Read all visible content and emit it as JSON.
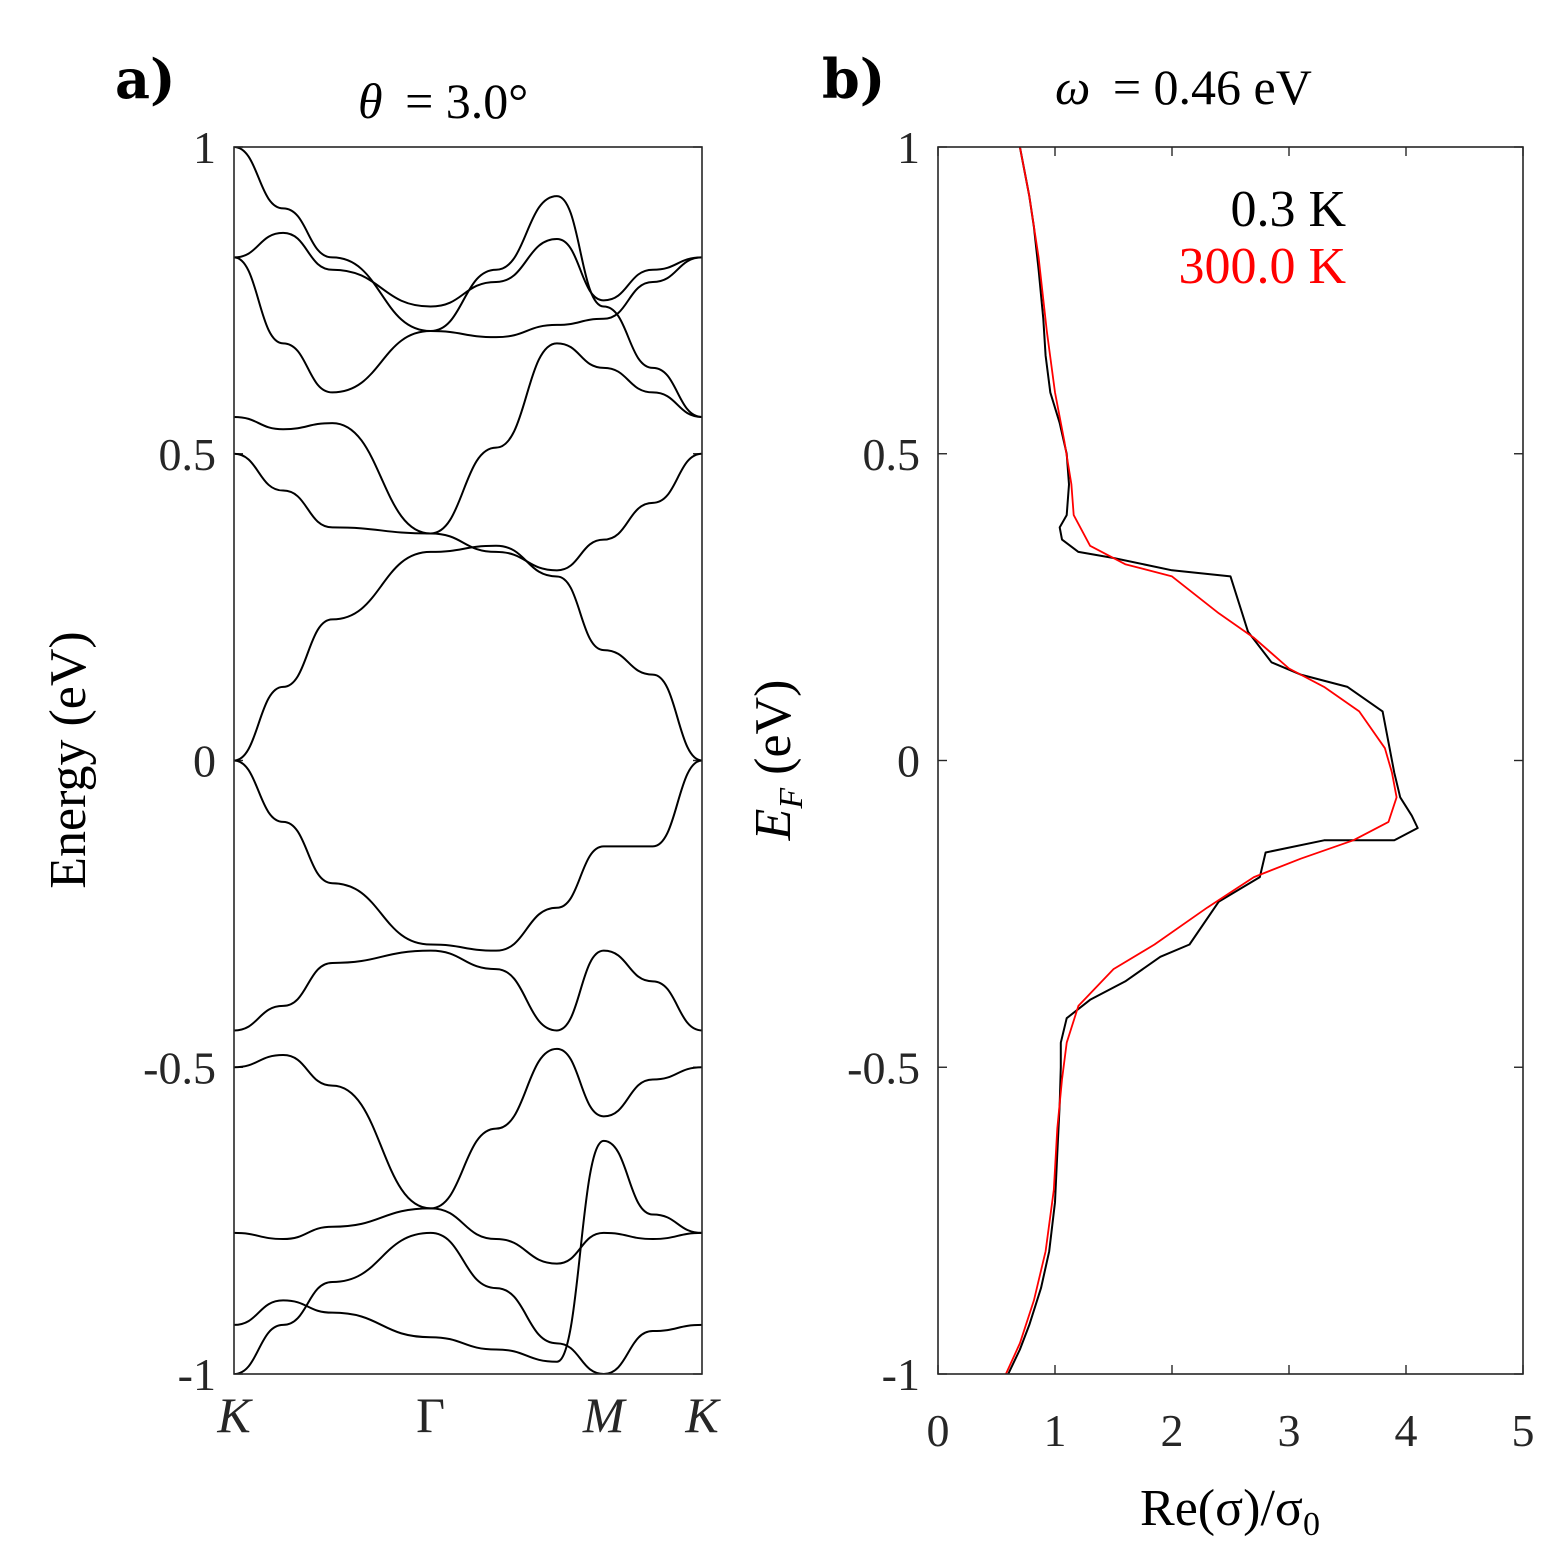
{
  "panel_a": {
    "label": "a)",
    "title_lhs": "θ",
    "title_rhs": "= 3.0°",
    "ylabel": "Energy (eV)"
  },
  "panel_b": {
    "label": "b)",
    "title_lhs": "ω",
    "title_rhs": "= 0.46 eV",
    "xlabel_main": "Re(σ)/σ",
    "xlabel_sub": "0",
    "ylabel_main": "E",
    "ylabel_sub": "F",
    "ylabel_rest": " (eV)"
  },
  "colors": {
    "series_0_3K": "#000000",
    "series_300K": "#ff0000",
    "axes": "#262626"
  },
  "chart_data": [
    {
      "type": "line",
      "panel": "a",
      "title": "θ = 3.0°",
      "ylabel": "Energy (eV)",
      "xlabel": "",
      "ylim": [
        -1,
        1
      ],
      "yticks": [
        -1,
        -0.5,
        0,
        0.5,
        1
      ],
      "ytick_labels": [
        "-1",
        "-0.5",
        "0",
        "0.5",
        "1"
      ],
      "x": [
        "K",
        "Γ",
        "M",
        "K"
      ],
      "x_positions": [
        0,
        0.42,
        0.79,
        1.0
      ],
      "bands": [
        [
          0.0,
          0.12,
          0.23,
          0.34,
          0.35,
          0.3,
          0.18,
          0.14,
          0.0
        ],
        [
          0.0,
          -0.1,
          -0.2,
          -0.3,
          -0.31,
          -0.24,
          -0.14,
          -0.14,
          0.0
        ],
        [
          0.5,
          0.44,
          0.38,
          0.37,
          0.34,
          0.31,
          0.36,
          0.42,
          0.5
        ],
        [
          -0.44,
          -0.4,
          -0.33,
          -0.31,
          -0.34,
          -0.44,
          -0.31,
          -0.36,
          -0.44
        ],
        [
          0.56,
          0.54,
          0.55,
          0.37,
          0.51,
          0.68,
          0.64,
          0.6,
          0.56
        ],
        [
          -0.5,
          -0.48,
          -0.53,
          -0.73,
          -0.6,
          -0.47,
          -0.58,
          -0.52,
          -0.5
        ],
        [
          0.82,
          0.86,
          0.8,
          0.74,
          0.78,
          0.85,
          0.75,
          0.8,
          0.82
        ],
        [
          -0.77,
          -0.78,
          -0.76,
          -0.73,
          -0.78,
          -0.82,
          -0.77,
          -0.78,
          -0.77
        ],
        [
          0.82,
          0.68,
          0.6,
          0.7,
          0.69,
          0.71,
          0.72,
          0.78,
          0.82
        ],
        [
          -0.92,
          -0.88,
          -0.9,
          -0.94,
          -0.96,
          -0.98,
          -0.62,
          -0.74,
          -0.77
        ],
        [
          1.0,
          0.9,
          0.82,
          0.7,
          0.8,
          0.92,
          0.74,
          0.64,
          0.56
        ],
        [
          -1.0,
          -0.92,
          -0.85,
          -0.77,
          -0.86,
          -0.95,
          -1.0,
          -0.93,
          -0.92
        ]
      ]
    },
    {
      "type": "line",
      "panel": "b",
      "title": "ω = 0.46 eV",
      "xlabel": "Re(σ)/σ0",
      "ylabel": "EF (eV)",
      "xlim": [
        0,
        5
      ],
      "ylim": [
        -1,
        1
      ],
      "xticks": [
        0,
        1,
        2,
        3,
        4,
        5
      ],
      "yticks": [
        -1,
        -0.5,
        0,
        0.5,
        1
      ],
      "ytick_labels": [
        "-1",
        "-0.5",
        "0",
        "0.5",
        "1"
      ],
      "legend_position": "top-right",
      "series": [
        {
          "name": "0.3 K",
          "color": "#000000",
          "points": [
            [
              0.7,
              1.0
            ],
            [
              0.74,
              0.96
            ],
            [
              0.78,
              0.92
            ],
            [
              0.82,
              0.87
            ],
            [
              0.86,
              0.8
            ],
            [
              0.9,
              0.72
            ],
            [
              0.92,
              0.66
            ],
            [
              0.96,
              0.6
            ],
            [
              1.04,
              0.55
            ],
            [
              1.1,
              0.5
            ],
            [
              1.12,
              0.45
            ],
            [
              1.1,
              0.4
            ],
            [
              1.04,
              0.38
            ],
            [
              1.06,
              0.36
            ],
            [
              1.2,
              0.34
            ],
            [
              1.5,
              0.33
            ],
            [
              2.0,
              0.31
            ],
            [
              2.5,
              0.3
            ],
            [
              2.6,
              0.24
            ],
            [
              2.65,
              0.21
            ],
            [
              2.85,
              0.16
            ],
            [
              3.1,
              0.14
            ],
            [
              3.5,
              0.12
            ],
            [
              3.8,
              0.08
            ],
            [
              3.86,
              0.02
            ],
            [
              3.9,
              -0.02
            ],
            [
              3.95,
              -0.06
            ],
            [
              4.05,
              -0.09
            ],
            [
              4.1,
              -0.11
            ],
            [
              3.9,
              -0.13
            ],
            [
              3.3,
              -0.13
            ],
            [
              2.8,
              -0.15
            ],
            [
              2.75,
              -0.19
            ],
            [
              2.4,
              -0.23
            ],
            [
              2.15,
              -0.3
            ],
            [
              1.9,
              -0.32
            ],
            [
              1.6,
              -0.36
            ],
            [
              1.3,
              -0.39
            ],
            [
              1.1,
              -0.42
            ],
            [
              1.05,
              -0.46
            ],
            [
              1.05,
              -0.5
            ],
            [
              1.04,
              -0.56
            ],
            [
              1.02,
              -0.64
            ],
            [
              1.0,
              -0.72
            ],
            [
              0.95,
              -0.8
            ],
            [
              0.88,
              -0.86
            ],
            [
              0.78,
              -0.92
            ],
            [
              0.7,
              -0.96
            ],
            [
              0.6,
              -1.0
            ]
          ]
        },
        {
          "name": "300.0 K",
          "color": "#ff0000",
          "points": [
            [
              0.7,
              1.0
            ],
            [
              0.78,
              0.92
            ],
            [
              0.86,
              0.82
            ],
            [
              0.93,
              0.7
            ],
            [
              1.0,
              0.6
            ],
            [
              1.08,
              0.52
            ],
            [
              1.14,
              0.45
            ],
            [
              1.16,
              0.4
            ],
            [
              1.3,
              0.35
            ],
            [
              1.6,
              0.32
            ],
            [
              2.0,
              0.3
            ],
            [
              2.4,
              0.24
            ],
            [
              2.7,
              0.2
            ],
            [
              3.0,
              0.15
            ],
            [
              3.3,
              0.12
            ],
            [
              3.6,
              0.08
            ],
            [
              3.82,
              0.02
            ],
            [
              3.88,
              -0.02
            ],
            [
              3.92,
              -0.06
            ],
            [
              3.85,
              -0.1
            ],
            [
              3.55,
              -0.13
            ],
            [
              3.1,
              -0.16
            ],
            [
              2.7,
              -0.19
            ],
            [
              2.3,
              -0.24
            ],
            [
              1.85,
              -0.3
            ],
            [
              1.5,
              -0.34
            ],
            [
              1.2,
              -0.4
            ],
            [
              1.1,
              -0.46
            ],
            [
              1.06,
              -0.52
            ],
            [
              1.02,
              -0.6
            ],
            [
              0.99,
              -0.7
            ],
            [
              0.92,
              -0.8
            ],
            [
              0.82,
              -0.88
            ],
            [
              0.7,
              -0.95
            ],
            [
              0.58,
              -1.0
            ]
          ]
        }
      ]
    }
  ]
}
